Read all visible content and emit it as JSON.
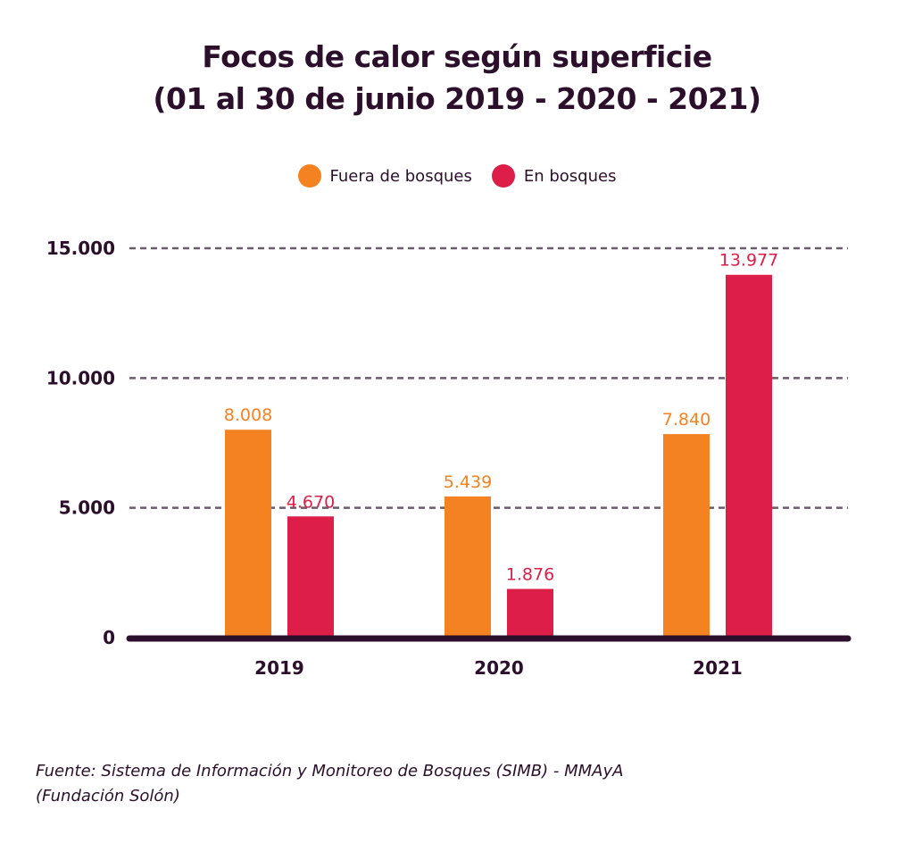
{
  "chart_data": {
    "type": "bar",
    "title_line1": "Focos de calor según superficie",
    "title_line2": "(01 al 30 de junio 2019 - 2020 - 2021)",
    "xlabel": "",
    "ylabel": "",
    "categories": [
      "2019",
      "2020",
      "2021"
    ],
    "series": [
      {
        "name": "Fuera de bosques",
        "color": "#f58220",
        "values": [
          8008,
          5439,
          7840
        ],
        "labels": [
          "8.008",
          "5.439",
          "7.840"
        ]
      },
      {
        "name": "En bosques",
        "color": "#dc1e48",
        "values": [
          4670,
          1876,
          13977
        ],
        "labels": [
          "4.670",
          "1.876",
          "13.977"
        ]
      }
    ],
    "ylim": [
      0,
      15000
    ],
    "yticks": [
      0,
      5000,
      10000,
      15000
    ],
    "ytick_labels": [
      "0",
      "5.000",
      "10.000",
      "15.000"
    ],
    "grid": true,
    "legend_position": "top-center"
  },
  "source": {
    "line1": "Fuente: Sistema de Información y Monitoreo de Bosques (SIMB) - MMAyA",
    "line2": "(Fundación Solón)"
  },
  "colors": {
    "text": "#2b0f2b",
    "grid": "#6b5a6b",
    "axis": "#2b0f2b"
  }
}
